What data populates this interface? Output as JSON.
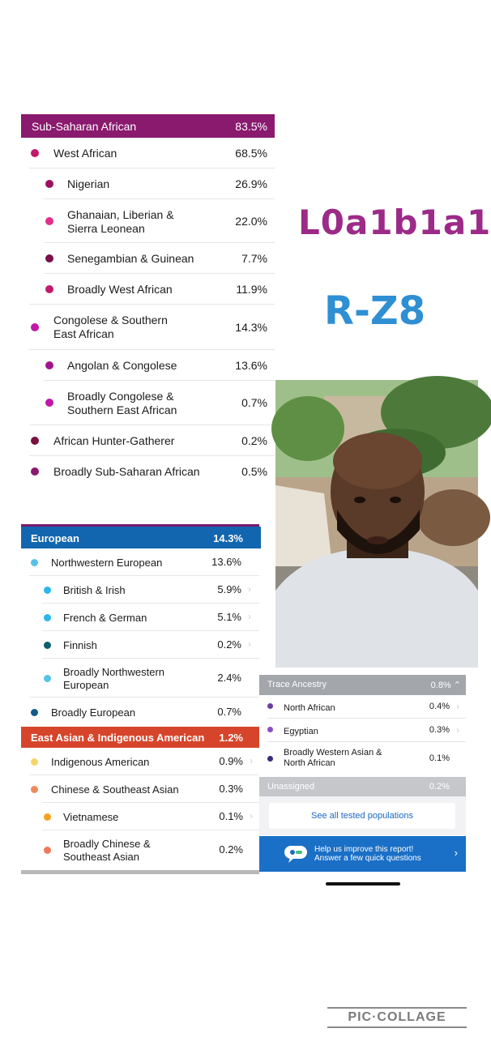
{
  "ssa": {
    "title": "Sub-Saharan African",
    "pct": "83.5%",
    "rows": [
      {
        "label": "West African",
        "pct": "68.5%",
        "color": "#c01a6a"
      },
      {
        "label": "Nigerian",
        "pct": "26.9%",
        "color": "#9a1260"
      },
      {
        "label": "Ghanaian, Liberian &",
        "label2": "Sierra Leonean",
        "pct": "22.0%",
        "color": "#e0308a"
      },
      {
        "label": "Senegambian & Guinean",
        "pct": "7.7%",
        "color": "#7a0f4a"
      },
      {
        "label": "Broadly West African",
        "pct": "11.9%",
        "color": "#c01a6a"
      },
      {
        "label": "Congolese & Southern",
        "label2": "East African",
        "pct": "14.3%",
        "color": "#c018a8"
      },
      {
        "label": "Angolan & Congolese",
        "pct": "13.6%",
        "color": "#a0148c"
      },
      {
        "label": "Broadly Congolese &",
        "label2": "Southern East African",
        "pct": "0.7%",
        "color": "#c018a8"
      },
      {
        "label": "African Hunter-Gatherer",
        "pct": "0.2%",
        "color": "#7a1040"
      },
      {
        "label": "Broadly Sub-Saharan African",
        "pct": "0.5%",
        "color": "#8a1a6e"
      }
    ]
  },
  "eur": {
    "title": "European",
    "pct": "14.3%",
    "rows": [
      {
        "label": "Northwestern European",
        "pct": "13.6%",
        "color": "#56c2e8"
      },
      {
        "label": "British & Irish",
        "pct": "5.9%",
        "color": "#2bb7e8"
      },
      {
        "label": "French & German",
        "pct": "5.1%",
        "color": "#2bb7e8"
      },
      {
        "label": "Finnish",
        "pct": "0.2%",
        "color": "#0f5e6e"
      },
      {
        "label": "Broadly Northwestern",
        "label2": "European",
        "pct": "2.4%",
        "color": "#56c2e8"
      },
      {
        "label": "Broadly European",
        "pct": "0.7%",
        "color": "#135a8c"
      }
    ]
  },
  "eai": {
    "title": "East Asian & Indigenous American",
    "pct": "1.2%",
    "rows": [
      {
        "label": "Indigenous American",
        "pct": "0.9%",
        "color": "#f5d56a"
      },
      {
        "label": "Chinese & Southeast Asian",
        "pct": "0.3%",
        "color": "#f08a5a"
      },
      {
        "label": "Vietnamese",
        "pct": "0.1%",
        "color": "#f7a21e"
      },
      {
        "label": "Broadly Chinese &",
        "label2": "Southeast Asian",
        "pct": "0.2%",
        "color": "#f0785a"
      }
    ]
  },
  "haplo": {
    "mtdna": "L0a1b1a1",
    "ydna": "R-Z8",
    "mt_color": "#9c2a88",
    "y_color": "#2f8fd3"
  },
  "trace": {
    "title": "Trace Ancestry",
    "pct": "0.8%",
    "rows": [
      {
        "label": "North African",
        "pct": "0.4%",
        "color": "#6a3fa0"
      },
      {
        "label": "Egyptian",
        "pct": "0.3%",
        "color": "#8a4fc8"
      },
      {
        "label": "Broadly Western Asian &",
        "label2": "North African",
        "pct": "0.1%",
        "color": "#3a2a80"
      }
    ],
    "unassigned_label": "Unassigned",
    "unassigned_pct": "0.2%",
    "see_all": "See all tested populations",
    "banner_l1": "Help us improve this report!",
    "banner_l2": "Answer a few quick questions"
  },
  "watermark": "PIC·COLLAGE",
  "icons": {
    "chevron": "chevron-right-icon",
    "collapse": "chevron-up-icon",
    "chat": "chat-bubble-icon"
  }
}
